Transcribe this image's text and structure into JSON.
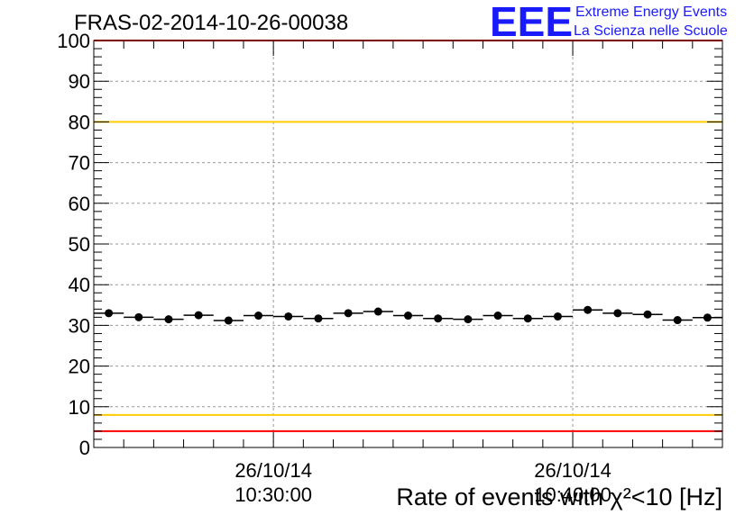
{
  "chart_data": {
    "type": "scatter",
    "title": "FRAS-02-2014-10-26-00038",
    "xlabel": "Rate of events with χ²<10 [Hz]",
    "ylabel": "",
    "ylim": [
      0,
      100
    ],
    "yticks": [
      "0",
      "10",
      "20",
      "30",
      "40",
      "50",
      "60",
      "70",
      "80",
      "90",
      "100"
    ],
    "grid": true,
    "x_bin_count": 21,
    "x_tick_labels": [
      {
        "bin": 6,
        "date": "26/10/14",
        "time": "10:30:00"
      },
      {
        "bin": 16,
        "date": "26/10/14",
        "time": "10:40:00"
      }
    ],
    "values": [
      33.0,
      32.0,
      31.5,
      32.5,
      31.2,
      32.4,
      32.2,
      31.7,
      33.0,
      33.4,
      32.4,
      31.7,
      31.5,
      32.4,
      31.7,
      32.2,
      33.8,
      33.0,
      32.7,
      31.3,
      31.9
    ],
    "reference_lines": [
      {
        "value": 100,
        "color": "#ff0000"
      },
      {
        "value": 80,
        "color": "#ffcc00"
      },
      {
        "value": 8,
        "color": "#ffcc00"
      },
      {
        "value": 4,
        "color": "#ff0000"
      }
    ]
  },
  "logo": {
    "mark": "EEE",
    "line1": "Extreme Energy Events",
    "line2": "La Scienza nelle Scuole",
    "color": "#1a1aff"
  }
}
